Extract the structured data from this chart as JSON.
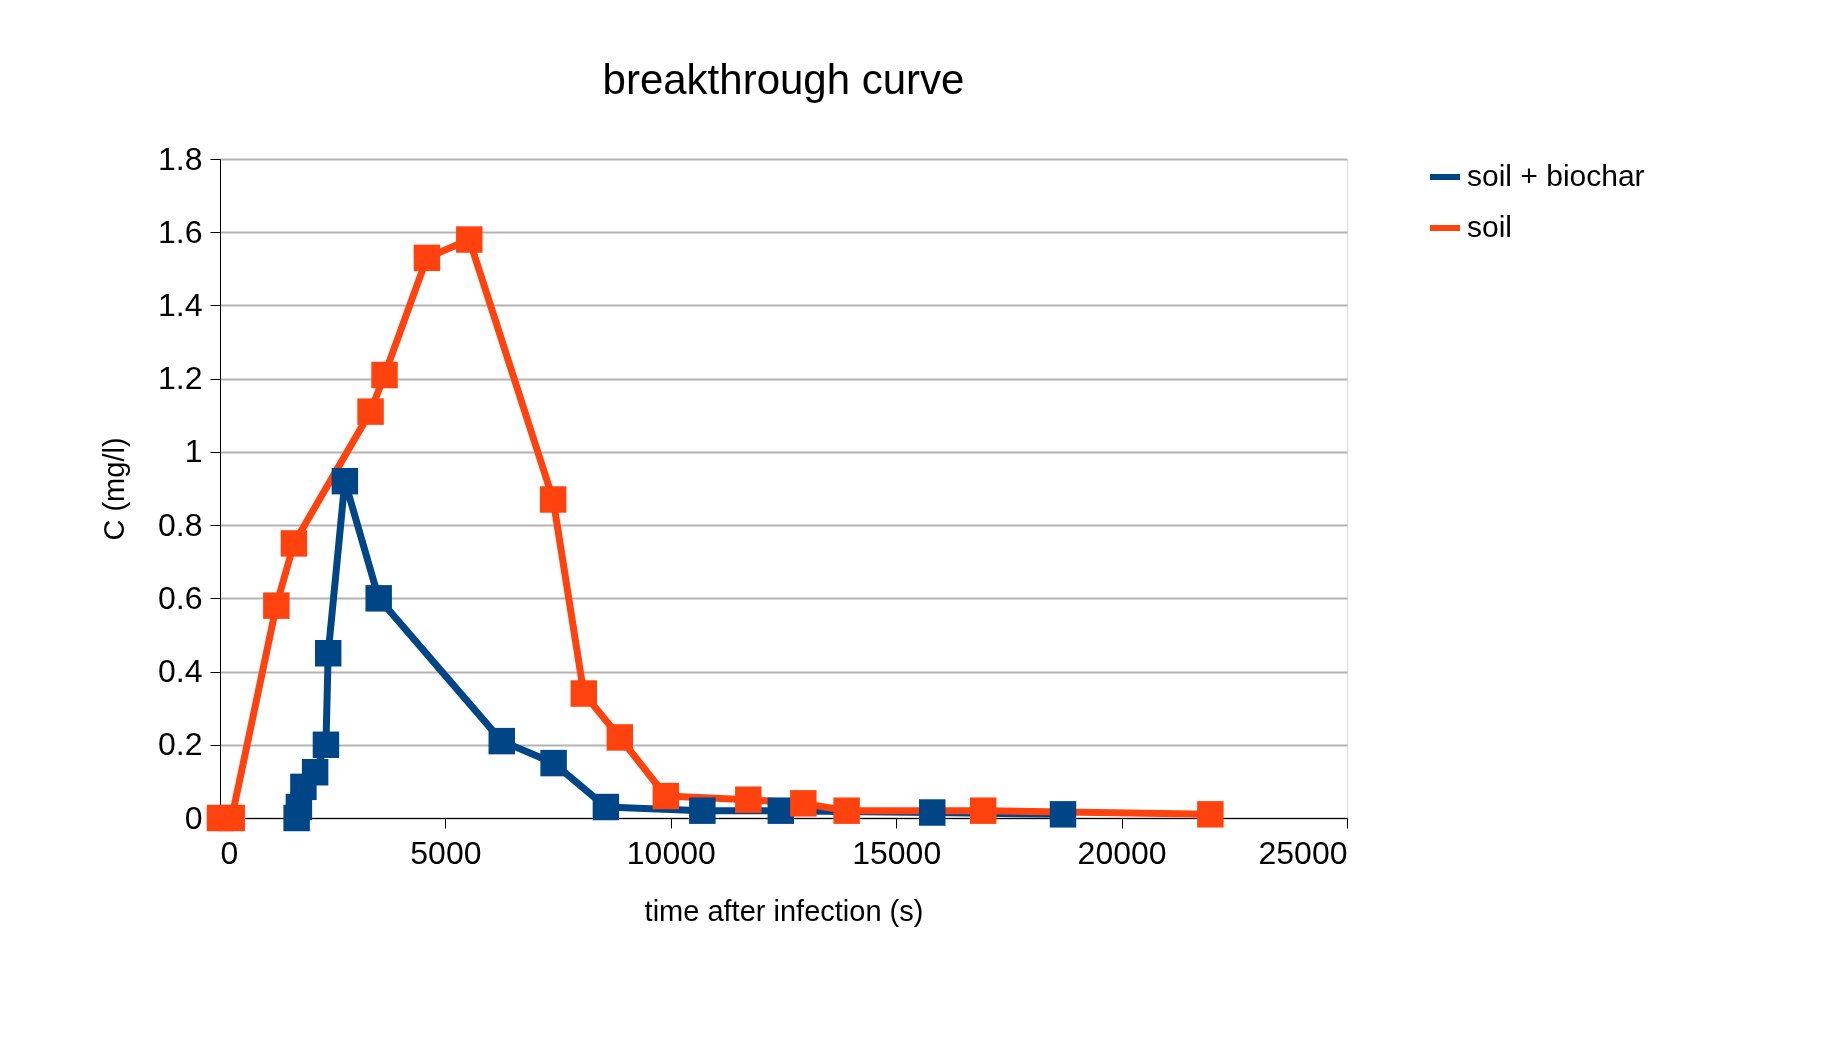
{
  "chart_data": {
    "type": "line",
    "title": "breakthrough curve",
    "xlabel": "time after infection (s)",
    "ylabel": "C (mg/l)",
    "xlim": [
      0,
      25000
    ],
    "xticks": [
      0,
      5000,
      10000,
      15000,
      20000,
      25000
    ],
    "ylim": [
      0,
      1.8
    ],
    "yticks": [
      0,
      0.2,
      0.4,
      0.6,
      0.8,
      1,
      1.2,
      1.4,
      1.6,
      1.8
    ],
    "grid": "y",
    "legend": "right",
    "marker": "square",
    "line_style": "solid",
    "series": [
      {
        "name": "soil + biochar",
        "color": "#004586",
        "x": [
          1700,
          1750,
          1850,
          2110,
          2350,
          2400,
          2770,
          3520,
          6250,
          7400,
          8560,
          10700,
          12440,
          15800,
          18700
        ],
        "values": [
          0,
          0.03,
          0.085,
          0.125,
          0.2,
          0.45,
          0.92,
          0.6,
          0.21,
          0.15,
          0.03,
          0.02,
          0.02,
          0.015,
          0.01
        ]
      },
      {
        "name": "soil",
        "color": "#ff420e",
        "x": [
          0,
          260,
          1250,
          1640,
          3340,
          3650,
          4590,
          5530,
          7390,
          8070,
          8870,
          9890,
          11720,
          12940,
          13900,
          16930,
          21970
        ],
        "values": [
          0,
          0,
          0.58,
          0.75,
          1.11,
          1.21,
          1.53,
          1.58,
          0.87,
          0.34,
          0.22,
          0.06,
          0.05,
          0.04,
          0.02,
          0.02,
          0.01
        ]
      }
    ]
  }
}
